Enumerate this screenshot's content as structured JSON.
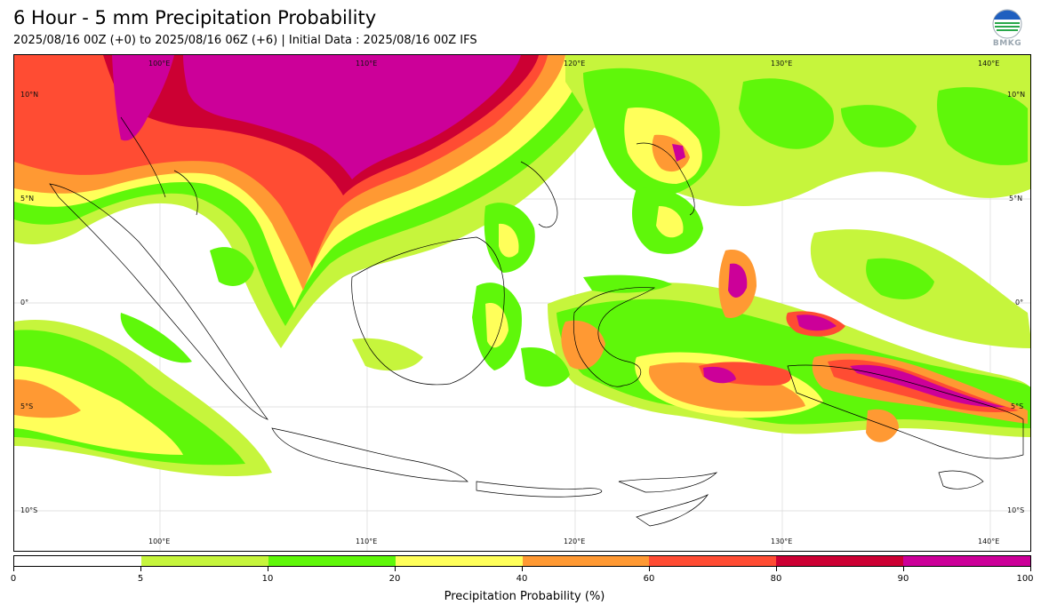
{
  "header": {
    "title": "6 Hour - 5 mm Precipitation Probability",
    "subtitle": "2025/08/16 00Z (+0) to 2025/08/16 06Z (+6) | Initial Data : 2025/08/16 00Z IFS",
    "logo_text": "BMKG"
  },
  "map": {
    "lon_labels_top": [
      "100°E",
      "110°E",
      "120°E",
      "130°E",
      "140°E"
    ],
    "lon_labels_bottom": [
      "100°E",
      "110°E",
      "120°E",
      "130°E",
      "140°E"
    ],
    "lat_labels_left": [
      "10°N",
      "5°N",
      "0°",
      "5°S",
      "10°S"
    ],
    "lat_labels_right": [
      "10°N",
      "5°N",
      "0°",
      "5°S",
      "10°S"
    ]
  },
  "colorbar": {
    "ticks": [
      "0",
      "5",
      "10",
      "20",
      "40",
      "60",
      "80",
      "90",
      "100"
    ],
    "colors": [
      "#ffffff",
      "#c6f53c",
      "#5ff70a",
      "#ffff5a",
      "#ff9933",
      "#ff4c33",
      "#cc0033",
      "#cc0099"
    ],
    "label": "Precipitation Probability (%)"
  }
}
